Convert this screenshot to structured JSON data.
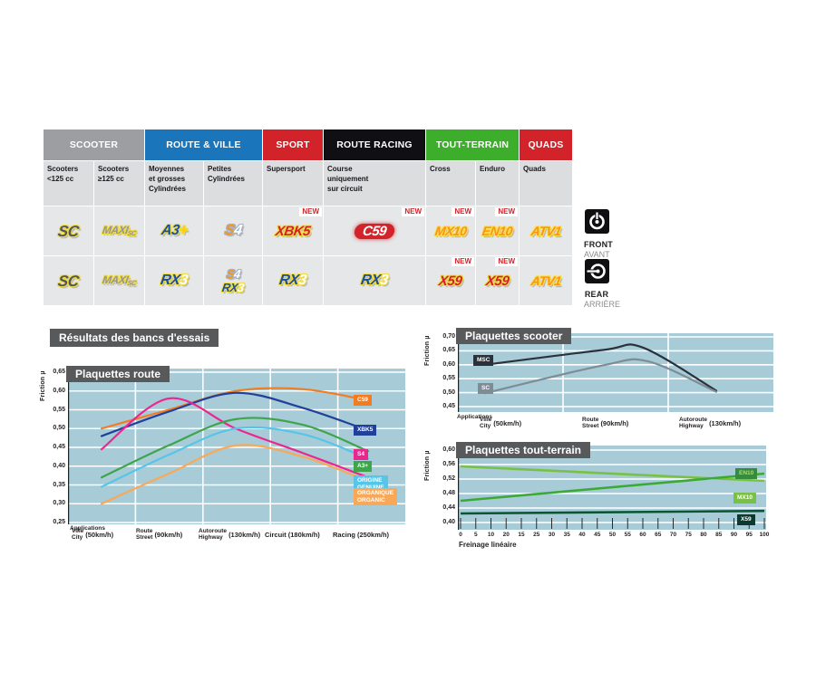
{
  "header_table": {
    "groups": [
      {
        "label": "SCOOTER",
        "color": "#9C9EA1",
        "span": 2
      },
      {
        "label": "ROUTE & VILLE",
        "color": "#1B75BB",
        "span": 2
      },
      {
        "label": "SPORT",
        "color": "#D2232A",
        "span": 1
      },
      {
        "label": "ROUTE RACING",
        "color": "#101014",
        "span": 1
      },
      {
        "label": "TOUT-TERRAIN",
        "color": "#3DAE2B",
        "span": 2
      },
      {
        "label": "QUADS",
        "color": "#D2232A",
        "span": 1
      }
    ],
    "subheaders": [
      "Scooters\n<125 cc",
      "Scooters\n≥125 cc",
      "Moyennes\net grosses\nCylindrées",
      "Petites\nCylindrées",
      "Supersport",
      "Course\nuniquement\nsur circuit",
      "Cross",
      "Enduro",
      "Quads"
    ],
    "new_badge": "NEW",
    "rows": {
      "front": {
        "cells": [
          {
            "products": [
              "SC"
            ],
            "new": false
          },
          {
            "products": [
              "MAXISC"
            ],
            "new": false
          },
          {
            "products": [
              "A3PLUS"
            ],
            "new": false
          },
          {
            "products": [
              "S4"
            ],
            "new": false
          },
          {
            "products": [
              "XBK5"
            ],
            "new": true
          },
          {
            "products": [
              "C59"
            ],
            "new": true
          },
          {
            "products": [
              "MX10"
            ],
            "new": true
          },
          {
            "products": [
              "EN10"
            ],
            "new": true
          },
          {
            "products": [
              "ATV1"
            ],
            "new": false
          }
        ]
      },
      "rear": {
        "cells": [
          {
            "products": [
              "SC"
            ],
            "new": false
          },
          {
            "products": [
              "MAXISC"
            ],
            "new": false
          },
          {
            "products": [
              "RX3"
            ],
            "new": false
          },
          {
            "products": [
              "S4",
              "RX3"
            ],
            "new": false
          },
          {
            "products": [
              "RX3"
            ],
            "new": false
          },
          {
            "products": [
              "RX3"
            ],
            "new": false
          },
          {
            "products": [
              "X59"
            ],
            "new": true
          },
          {
            "products": [
              "X59"
            ],
            "new": true
          },
          {
            "products": [
              "ATV1"
            ],
            "new": false
          }
        ]
      }
    },
    "legend": {
      "front": {
        "label": "FRONT",
        "sub": "AVANT"
      },
      "rear": {
        "label": "REAR",
        "sub": "ARRIÈRE"
      }
    }
  },
  "logos": {
    "SC": {
      "parts": [
        {
          "t": "SC",
          "c": "#54565B"
        }
      ],
      "halo": "#EFDC4A",
      "size": 17
    },
    "MAXISC": {
      "parts": [
        {
          "t": "MAXI",
          "c": "#939598"
        },
        {
          "t": "SC",
          "c": "#939598",
          "sub": true
        }
      ],
      "halo": "#EFDC4A",
      "size": 12
    },
    "A3PLUS": {
      "parts": [
        {
          "t": "A3",
          "c": "#1C4F9E"
        },
        {
          "t": "+",
          "c": "#FFD200"
        }
      ],
      "halo": "#EFDC4A",
      "size": 16
    },
    "S4": {
      "parts": [
        {
          "t": "S",
          "c": "#F7941D"
        },
        {
          "t": "4",
          "c": "#FFFFFF"
        }
      ],
      "halo": "#9FB4CE",
      "size": 16
    },
    "XBK5": {
      "parts": [
        {
          "t": "XBK5",
          "c": "#D2232A"
        }
      ],
      "halo": "#EFDC4A",
      "size": 15
    },
    "C59": {
      "pill": true,
      "parts": [
        {
          "t": "C59",
          "c": "#FFFFFF"
        }
      ],
      "bg": "#D2232A",
      "size": 15
    },
    "MX10": {
      "parts": [
        {
          "t": "MX10",
          "c": "#F7941D"
        }
      ],
      "halo": "#FFE04B",
      "size": 14
    },
    "EN10": {
      "parts": [
        {
          "t": "EN10",
          "c": "#F7941D"
        }
      ],
      "halo": "#FFE04B",
      "size": 14
    },
    "ATV1": {
      "parts": [
        {
          "t": "ATV1",
          "c": "#F7941D"
        }
      ],
      "halo": "#FFE04B",
      "size": 14
    },
    "RX3": {
      "parts": [
        {
          "t": "RX",
          "c": "#1C4F9E"
        },
        {
          "t": "3",
          "c": "#FFFFFF"
        }
      ],
      "halo": "#EFDC4A",
      "size": 16
    },
    "X59": {
      "parts": [
        {
          "t": "X59",
          "c": "#D2232A"
        }
      ],
      "halo": "#EFDC4A",
      "size": 15
    }
  },
  "section_title": "Résultats des bancs d'essais",
  "chart_data": [
    {
      "type": "line",
      "title": "Plaquettes route",
      "ylabel": "Friction µ",
      "x_caption": "Applications",
      "legend_position": "right",
      "grid": true,
      "ylim": [
        0.25,
        0.66
      ],
      "yticks": [
        0.65,
        0.6,
        0.55,
        0.5,
        0.45,
        0.4,
        0.35,
        0.3,
        0.25
      ],
      "ytick_labels": [
        "0,65",
        "0,60",
        "0,55",
        "0,50",
        "0,45",
        "0,40",
        "0,35",
        "0,30",
        "0,25"
      ],
      "categories": [
        {
          "fr": "Ville",
          "en": "City",
          "speed": "(50km/h)"
        },
        {
          "fr": "Route",
          "en": "Street",
          "speed": "(90km/h)"
        },
        {
          "fr": "Autoroute",
          "en": "Highway",
          "speed": "(130km/h)"
        },
        {
          "fr": "Circuit",
          "en": "",
          "speed": "(180km/h)"
        },
        {
          "fr": "Racing",
          "en": "",
          "speed": "(250km/h)"
        }
      ],
      "series": [
        {
          "name": "C59",
          "label_lines": [
            "C59"
          ],
          "color": "#F47B20",
          "label_bg": "#F47B20",
          "values": [
            0.5,
            0.55,
            0.6,
            0.605,
            0.575
          ]
        },
        {
          "name": "XBK5",
          "label_lines": [
            "XBK5"
          ],
          "color": "#20409A",
          "label_bg": "#20409A",
          "values": [
            0.48,
            0.545,
            0.595,
            0.555,
            0.495
          ]
        },
        {
          "name": "S4",
          "label_lines": [
            "S4"
          ],
          "color": "#EC268F",
          "label_bg": "#EC268F",
          "values": [
            0.445,
            0.58,
            0.5,
            0.435,
            0.37
          ]
        },
        {
          "name": "A3+",
          "label_lines": [
            "A3+"
          ],
          "color": "#3FA54A",
          "label_bg": "#3FA54A",
          "values": [
            0.37,
            0.455,
            0.525,
            0.51,
            0.44
          ]
        },
        {
          "name": "ORIGINE / GENUINE",
          "label_lines": [
            "ORIGINE",
            "GENUINE"
          ],
          "color": "#56C5E8",
          "label_bg": "#56C5E8",
          "values": [
            0.345,
            0.43,
            0.5,
            0.485,
            0.42
          ]
        },
        {
          "name": "ORGANIQUE / ORGANIC",
          "label_lines": [
            "ORGANIQUE",
            "ORGANIC"
          ],
          "color": "#F9A857",
          "label_bg": "#F9A857",
          "values": [
            0.3,
            0.38,
            0.455,
            0.425,
            0.36
          ]
        }
      ]
    },
    {
      "type": "line",
      "title": "Plaquettes scooter",
      "ylabel": "Friction µ",
      "x_caption": "Applications",
      "grid": true,
      "ylim": [
        0.45,
        0.7
      ],
      "yticks": [
        0.7,
        0.65,
        0.6,
        0.55,
        0.5,
        0.45
      ],
      "ytick_labels": [
        "0,70",
        "0,65",
        "0,60",
        "0,55",
        "0,50",
        "0,45"
      ],
      "categories": [
        {
          "fr": "Ville",
          "en": "City",
          "speed": "(50km/h)"
        },
        {
          "fr": "Route",
          "en": "Street",
          "speed": "(90km/h)"
        },
        {
          "fr": "Autoroute",
          "en": "Highway",
          "speed": "(130km/h)"
        }
      ],
      "series": [
        {
          "name": "MSC",
          "label_lines": [
            "MSC"
          ],
          "color": "#29323C",
          "label_bg": "#29323C",
          "values": [
            0.6,
            0.65,
            0.51
          ],
          "points": [
            [
              0,
              0.6
            ],
            [
              1,
              0.653
            ],
            [
              1.35,
              0.662
            ],
            [
              2,
              0.507
            ]
          ]
        },
        {
          "name": "SC",
          "label_lines": [
            "SC"
          ],
          "color": "#7E8C95",
          "label_bg": "#7E8C95",
          "values": [
            0.5,
            0.6,
            0.51
          ],
          "points": [
            [
              0,
              0.498
            ],
            [
              1,
              0.598
            ],
            [
              1.4,
              0.612
            ],
            [
              2,
              0.503
            ]
          ]
        }
      ]
    },
    {
      "type": "line",
      "title": "Plaquettes tout-terrain",
      "ylabel": "Friction µ",
      "xlabel": "Freinage linéaire",
      "grid": true,
      "xlim": [
        0,
        100
      ],
      "ylim": [
        0.4,
        0.6
      ],
      "yticks": [
        0.6,
        0.56,
        0.52,
        0.48,
        0.44,
        0.4
      ],
      "ytick_labels": [
        "0,60",
        "0,56",
        "0,52",
        "0,48",
        "0,44",
        "0,40"
      ],
      "xtick_labels": [
        "0",
        "5",
        "10",
        "20",
        "15",
        "25",
        "30",
        "35",
        "40",
        "45",
        "50",
        "55",
        "60",
        "65",
        "70",
        "75",
        "80",
        "85",
        "90",
        "95",
        "100"
      ],
      "series": [
        {
          "name": "EN10",
          "label_lines": [
            "EN10"
          ],
          "color": "#79C143",
          "label_bg": "#358C3C",
          "label_color": "#A9DC72",
          "points": [
            [
              0,
              0.555
            ],
            [
              100,
              0.515
            ]
          ]
        },
        {
          "name": "MX10",
          "label_lines": [
            "MX10"
          ],
          "color": "#3AAA35",
          "label_bg": "#79C143",
          "label_color": "#FFFFFF",
          "points": [
            [
              0,
              0.46
            ],
            [
              100,
              0.535
            ]
          ]
        },
        {
          "name": "X59",
          "label_lines": [
            "X59"
          ],
          "color": "#0A5633",
          "label_bg": "#0D3A30",
          "label_color": "#FFFFFF",
          "points": [
            [
              0,
              0.425
            ],
            [
              100,
              0.432
            ]
          ]
        }
      ]
    }
  ]
}
